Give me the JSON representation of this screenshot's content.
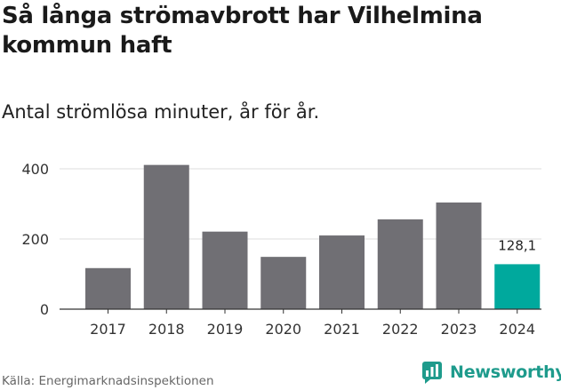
{
  "header": {
    "title": "Så långa strömavbrott har Vilhelmina kommun haft",
    "subtitle": "Antal strömlösa minuter, år för år."
  },
  "footer": {
    "source": "Källa: Energimarknadsinspektionen",
    "brand": "Newsworthy",
    "brand_icon": "newsworthy-logo-icon",
    "brand_color": "#1e9b8c"
  },
  "chart_data": {
    "type": "bar",
    "title": "Så långa strömavbrott har Vilhelmina kommun haft",
    "subtitle": "Antal strömlösa minuter, år för år.",
    "xlabel": "",
    "ylabel": "",
    "categories": [
      "2017",
      "2018",
      "2019",
      "2020",
      "2021",
      "2022",
      "2023",
      "2024"
    ],
    "values": [
      117,
      411,
      221,
      149,
      210,
      256,
      304,
      128.1
    ],
    "ylim": [
      0,
      400
    ],
    "yticks": [
      0,
      200,
      400
    ],
    "grid": true,
    "bar_color": "#706f74",
    "highlight_color": "#00a99d",
    "highlight_index": 7,
    "annotations": [
      {
        "category": "2024",
        "label": "128,1"
      }
    ]
  }
}
